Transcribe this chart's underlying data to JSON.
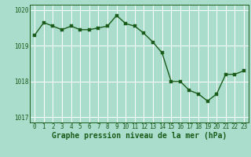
{
  "x": [
    0,
    1,
    2,
    3,
    4,
    5,
    6,
    7,
    8,
    9,
    10,
    11,
    12,
    13,
    14,
    15,
    16,
    17,
    18,
    19,
    20,
    21,
    22,
    23
  ],
  "y": [
    1019.3,
    1019.65,
    1019.55,
    1019.45,
    1019.55,
    1019.45,
    1019.45,
    1019.5,
    1019.55,
    1019.85,
    1019.62,
    1019.55,
    1019.35,
    1019.1,
    1018.8,
    1018.0,
    1018.0,
    1017.75,
    1017.65,
    1017.45,
    1017.65,
    1018.2,
    1018.2,
    1018.3
  ],
  "line_color": "#1a5c1a",
  "marker_color": "#1a5c1a",
  "bg_color": "#aaddcc",
  "grid_color": "#ffffff",
  "xlabel": "Graphe pression niveau de la mer (hPa)",
  "xlabel_color": "#1a5c1a",
  "tick_color": "#1a5c1a",
  "ylim": [
    1016.85,
    1020.15
  ],
  "yticks": [
    1017,
    1018,
    1019,
    1020
  ],
  "xlim": [
    -0.5,
    23.5
  ],
  "xticks": [
    0,
    1,
    2,
    3,
    4,
    5,
    6,
    7,
    8,
    9,
    10,
    11,
    12,
    13,
    14,
    15,
    16,
    17,
    18,
    19,
    20,
    21,
    22,
    23
  ],
  "xtick_labels": [
    "0",
    "1",
    "2",
    "3",
    "4",
    "5",
    "6",
    "7",
    "8",
    "9",
    "10",
    "11",
    "12",
    "13",
    "14",
    "15",
    "16",
    "17",
    "18",
    "19",
    "20",
    "21",
    "22",
    "23"
  ],
  "tick_fontsize": 5.5,
  "xlabel_fontsize": 7,
  "marker_size": 2.5,
  "line_width": 1.0
}
